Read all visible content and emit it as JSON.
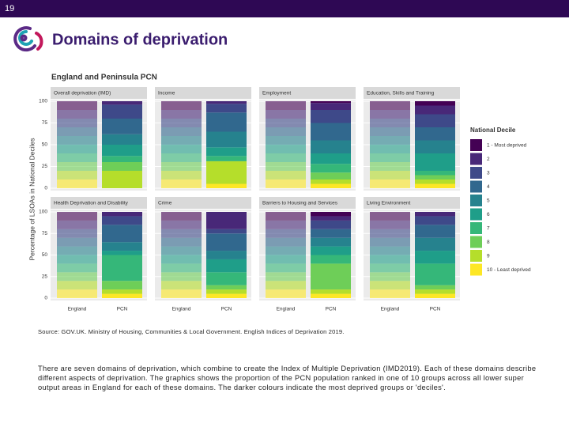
{
  "page_number": "19",
  "title": "Domains of deprivation",
  "source": "Source: GOV.UK. Ministry of Housing, Communities & Local Government. English Indices of Deprivation 2019.",
  "paragraph": "There are seven domains of deprivation, which combine to create the Index of Multiple Deprivation (IMD2019). Each of these domains describe different aspects of deprivation. The graphics shows the proportion of the PCN population ranked in one of 10 groups across all lower super output areas in England for each of these domains. The darker colours indicate the most deprived groups or 'deciles'.",
  "chart_data": {
    "type": "bar",
    "stacked": true,
    "title": "England and Peninsula PCN",
    "ylabel": "Percentage of LSOAs in National Deciles",
    "legend_title": "National Decile",
    "categories": [
      "England",
      "PCN"
    ],
    "category_opacity": [
      0.6,
      1
    ],
    "facets": [
      "Overall deprivation (IMD)",
      "Income",
      "Employment",
      "Education, Skills and Training",
      "Health Deprivation and Disability",
      "Crime",
      "Barriers to Housing and Services",
      "Living Environment"
    ],
    "ylim": [
      0,
      100
    ],
    "yticks": [
      0,
      25,
      50,
      75,
      100
    ],
    "grid": true,
    "series": [
      {
        "name": "1 - Most deprived",
        "color": "#440154",
        "values": [
          [
            10,
            0
          ],
          [
            10,
            0
          ],
          [
            10,
            2
          ],
          [
            10,
            5
          ],
          [
            10,
            0
          ],
          [
            10,
            0
          ],
          [
            10,
            5
          ],
          [
            10,
            0
          ]
        ]
      },
      {
        "name": "2",
        "color": "#482878",
        "values": [
          [
            10,
            4
          ],
          [
            10,
            3
          ],
          [
            10,
            8
          ],
          [
            10,
            10
          ],
          [
            10,
            5
          ],
          [
            10,
            20
          ],
          [
            10,
            5
          ],
          [
            10,
            5
          ]
        ]
      },
      {
        "name": "3",
        "color": "#3e4989",
        "values": [
          [
            10,
            16
          ],
          [
            10,
            10
          ],
          [
            10,
            15
          ],
          [
            10,
            15
          ],
          [
            10,
            10
          ],
          [
            10,
            5
          ],
          [
            10,
            10
          ],
          [
            10,
            10
          ]
        ]
      },
      {
        "name": "4",
        "color": "#31688e",
        "values": [
          [
            10,
            18
          ],
          [
            10,
            22
          ],
          [
            10,
            20
          ],
          [
            10,
            15
          ],
          [
            10,
            20
          ],
          [
            10,
            20
          ],
          [
            10,
            10
          ],
          [
            10,
            15
          ]
        ]
      },
      {
        "name": "5",
        "color": "#26828e",
        "values": [
          [
            10,
            12
          ],
          [
            10,
            18
          ],
          [
            10,
            15
          ],
          [
            10,
            15
          ],
          [
            10,
            10
          ],
          [
            10,
            10
          ],
          [
            10,
            10
          ],
          [
            10,
            15
          ]
        ]
      },
      {
        "name": "6",
        "color": "#1f9e89",
        "values": [
          [
            10,
            13
          ],
          [
            10,
            10
          ],
          [
            10,
            12
          ],
          [
            10,
            20
          ],
          [
            10,
            5
          ],
          [
            10,
            15
          ],
          [
            10,
            10
          ],
          [
            10,
            15
          ]
        ]
      },
      {
        "name": "7",
        "color": "#35b779",
        "values": [
          [
            10,
            7
          ],
          [
            10,
            6
          ],
          [
            10,
            10
          ],
          [
            10,
            5
          ],
          [
            10,
            30
          ],
          [
            10,
            15
          ],
          [
            10,
            10
          ],
          [
            10,
            25
          ]
        ]
      },
      {
        "name": "8",
        "color": "#6ece58",
        "values": [
          [
            10,
            10
          ],
          [
            10,
            0
          ],
          [
            10,
            8
          ],
          [
            10,
            5
          ],
          [
            10,
            10
          ],
          [
            10,
            5
          ],
          [
            10,
            30
          ],
          [
            10,
            5
          ]
        ]
      },
      {
        "name": "9",
        "color": "#b5de2b",
        "values": [
          [
            10,
            20
          ],
          [
            10,
            26
          ],
          [
            10,
            5
          ],
          [
            10,
            5
          ],
          [
            10,
            5
          ],
          [
            10,
            5
          ],
          [
            10,
            5
          ],
          [
            10,
            5
          ]
        ]
      },
      {
        "name": "10 - Least deprived",
        "color": "#fde725",
        "values": [
          [
            10,
            0
          ],
          [
            10,
            5
          ],
          [
            10,
            5
          ],
          [
            10,
            5
          ],
          [
            10,
            5
          ],
          [
            10,
            5
          ],
          [
            10,
            5
          ],
          [
            10,
            5
          ]
        ]
      }
    ]
  }
}
